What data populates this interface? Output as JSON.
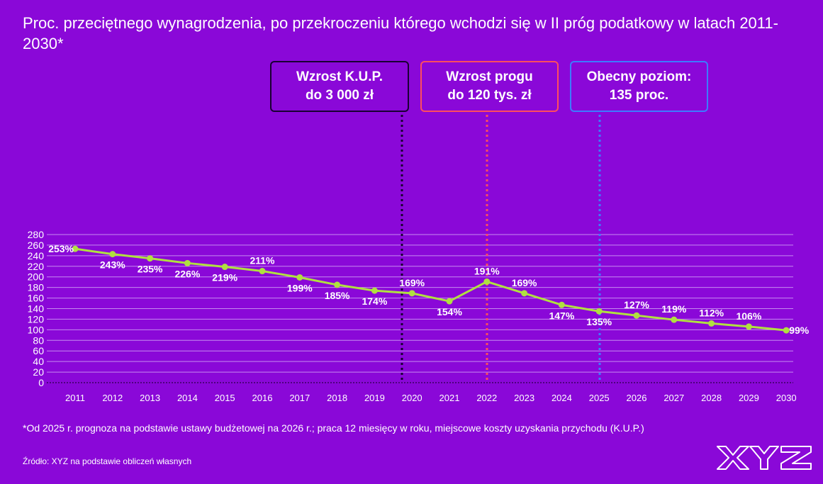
{
  "title": "Proc. przeciętnego wynagrodzenia, po przekroczeniu którego wchodzi się w II próg podatkowy w latach 2011-2030*",
  "footnote": "*Od 2025 r. prognoza na podstawie ustawy budżetowej na 2026 r.; praca 12 miesięcy w roku, miejscowe koszty uzyskania przychodu (K.U.P.)",
  "source": "Źródło: XYZ na podstawie obliczeń własnych",
  "logo_text": "XYZ",
  "colors": {
    "background": "#8a08d8",
    "line": "#b0e040",
    "grid": "#c58af0",
    "callout_kup": "#1a0033",
    "callout_prog": "#ff4d5e",
    "callout_poziom": "#3d7bff"
  },
  "callouts": [
    {
      "id": "kup",
      "text": "Wzrost K.U.P.\ndo 3 000 zł",
      "year": "2020",
      "color_key": "callout_kup"
    },
    {
      "id": "prog",
      "text": "Wzrost progu\ndo 120 tys. zł",
      "year": "2022",
      "color_key": "callout_prog"
    },
    {
      "id": "poziom",
      "text": "Obecny poziom:\n135 proc.",
      "year": "2025",
      "color_key": "callout_poziom"
    }
  ],
  "chart_data": {
    "type": "line",
    "categories": [
      "2011",
      "2012",
      "2013",
      "2014",
      "2015",
      "2016",
      "2017",
      "2018",
      "2019",
      "2020",
      "2021",
      "2022",
      "2023",
      "2024",
      "2025",
      "2026",
      "2027",
      "2028",
      "2029",
      "2030"
    ],
    "values": [
      253,
      243,
      235,
      226,
      219,
      211,
      199,
      185,
      174,
      169,
      154,
      191,
      169,
      147,
      135,
      127,
      119,
      112,
      106,
      99
    ],
    "labels": [
      "253%",
      "243%",
      "235%",
      "226%",
      "219%",
      "211%",
      "199%",
      "185%",
      "174%",
      "169%",
      "154%",
      "191%",
      "169%",
      "147%",
      "135%",
      "127%",
      "119%",
      "112%",
      "106%",
      "99%"
    ],
    "y_ticks": [
      0,
      20,
      40,
      60,
      80,
      100,
      120,
      140,
      160,
      180,
      200,
      220,
      240,
      260,
      280
    ],
    "ylim": [
      0,
      280
    ],
    "grid": true,
    "legend": "none"
  }
}
